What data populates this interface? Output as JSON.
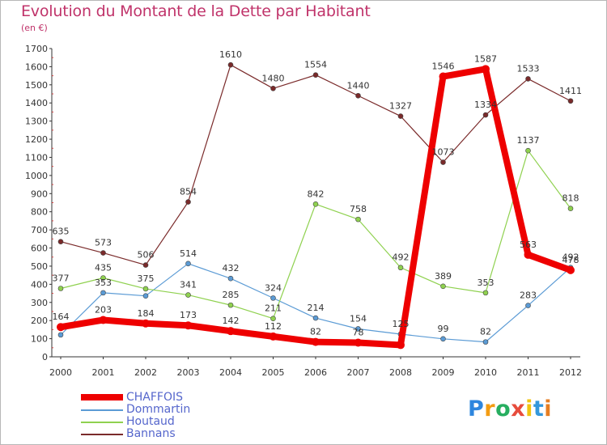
{
  "chart_data": {
    "type": "line",
    "title": "Evolution du Montant de la Dette par Habitant",
    "subtitle": "(en €)",
    "categories": [
      "2000",
      "2001",
      "2002",
      "2003",
      "2004",
      "2005",
      "2006",
      "2007",
      "2008",
      "2009",
      "2010",
      "2011",
      "2012"
    ],
    "ylim": [
      0,
      1700
    ],
    "yticks": [
      0,
      100,
      200,
      300,
      400,
      500,
      600,
      700,
      800,
      900,
      1000,
      1100,
      1200,
      1300,
      1400,
      1500,
      1600,
      1700
    ],
    "grid": false,
    "series": [
      {
        "name": "CHAFFOIS",
        "color": "#ee0000",
        "emphasis": true,
        "values": [
          164,
          203,
          184,
          173,
          142,
          112,
          82,
          78,
          65,
          1546,
          1587,
          563,
          478
        ],
        "labels": [
          "164",
          "203",
          "184",
          "173",
          "142",
          "112",
          "82",
          "78",
          "",
          "1546",
          "1587",
          "563",
          "478"
        ]
      },
      {
        "name": "Dommartin",
        "color": "#5b9bd5",
        "emphasis": false,
        "values": [
          121,
          353,
          336,
          514,
          432,
          324,
          214,
          154,
          125,
          99,
          82,
          283,
          492
        ],
        "labels": [
          "",
          "353",
          "",
          "514",
          "432",
          "324",
          "214",
          "154",
          "125",
          "99",
          "82",
          "283",
          "492"
        ]
      },
      {
        "name": "Houtaud",
        "color": "#8fd14f",
        "emphasis": false,
        "values": [
          377,
          435,
          375,
          341,
          285,
          211,
          842,
          758,
          492,
          389,
          353,
          1137,
          818
        ],
        "labels": [
          "377",
          "435",
          "375",
          "341",
          "285",
          "211",
          "842",
          "758",
          "492",
          "389",
          "353",
          "1137",
          "818"
        ]
      },
      {
        "name": "Bannans",
        "color": "#7a2a2a",
        "emphasis": false,
        "values": [
          635,
          573,
          506,
          854,
          1610,
          1480,
          1554,
          1440,
          1327,
          1073,
          1334,
          1533,
          1411
        ],
        "labels": [
          "635",
          "573",
          "506",
          "854",
          "1610",
          "1480",
          "1554",
          "1440",
          "1327",
          "1073",
          "1334",
          "1533",
          "1411"
        ]
      }
    ]
  },
  "brand": {
    "name": "Proxiti",
    "letters": [
      "P",
      "r",
      "o",
      "x",
      "i",
      "t",
      "i"
    ],
    "colors": [
      "#2e86de",
      "#f39c12",
      "#27ae60",
      "#e74c3c",
      "#f1c40f",
      "#3498db",
      "#e67e22"
    ]
  }
}
